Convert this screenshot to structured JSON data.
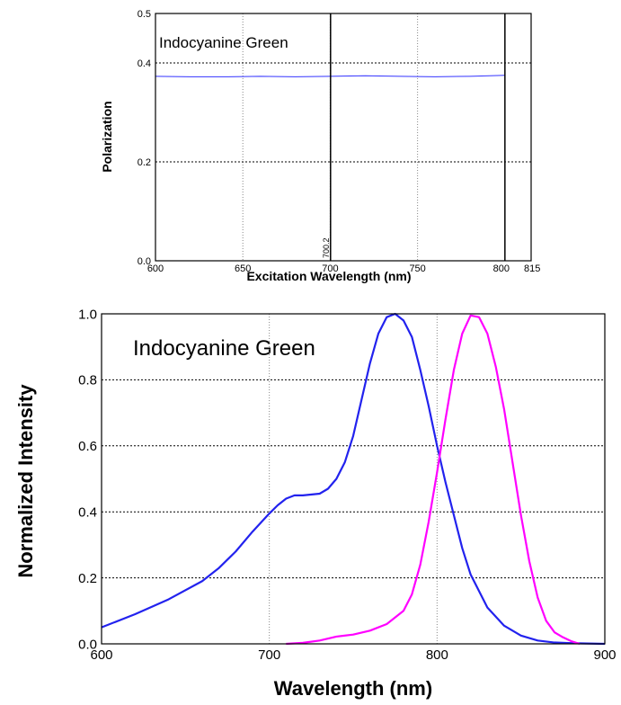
{
  "chart_data": [
    {
      "type": "line",
      "title": "Indocyanine Green",
      "xlabel": "Excitation Wavelength (nm)",
      "ylabel": "Polarization",
      "xlim": [
        600,
        815
      ],
      "ylim": [
        0,
        0.5
      ],
      "x_ticks": [
        "600",
        "650",
        "700",
        "750",
        "800",
        "815"
      ],
      "y_ticks": [
        "0.0",
        "0.2",
        "0.4",
        "0.5"
      ],
      "grid": true,
      "marker_line": {
        "x": 700.2,
        "label": "700.2"
      },
      "end_line": {
        "x": 800
      },
      "series": [
        {
          "color": "#3333ff",
          "x": [
            600,
            620,
            640,
            660,
            680,
            700,
            720,
            740,
            760,
            780,
            800
          ],
          "y": [
            0.373,
            0.372,
            0.372,
            0.373,
            0.372,
            0.373,
            0.374,
            0.373,
            0.372,
            0.373,
            0.375
          ]
        }
      ]
    },
    {
      "type": "line",
      "title": "Indocyanine Green",
      "xlabel": "Wavelength (nm)",
      "ylabel": "Normalized Intensity",
      "xlim": [
        600,
        900
      ],
      "ylim": [
        0,
        1
      ],
      "x_ticks": [
        "600",
        "700",
        "800",
        "900"
      ],
      "y_ticks": [
        "0.0",
        "0.2",
        "0.4",
        "0.6",
        "0.8",
        "1.0"
      ],
      "grid": true,
      "series": [
        {
          "color": "#2222ee",
          "x": [
            600,
            620,
            640,
            660,
            670,
            680,
            690,
            700,
            705,
            710,
            715,
            720,
            730,
            735,
            740,
            745,
            750,
            755,
            760,
            765,
            770,
            775,
            780,
            785,
            790,
            795,
            800,
            805,
            810,
            815,
            820,
            830,
            840,
            850,
            860,
            870,
            880,
            890,
            900
          ],
          "y": [
            0.05,
            0.09,
            0.135,
            0.19,
            0.23,
            0.28,
            0.34,
            0.395,
            0.42,
            0.44,
            0.45,
            0.45,
            0.455,
            0.47,
            0.5,
            0.55,
            0.63,
            0.74,
            0.85,
            0.94,
            0.99,
            1.0,
            0.98,
            0.93,
            0.83,
            0.72,
            0.6,
            0.49,
            0.39,
            0.29,
            0.21,
            0.11,
            0.055,
            0.025,
            0.01,
            0.004,
            0.002,
            0.001,
            0.0
          ]
        },
        {
          "color": "#ff00ff",
          "x": [
            710,
            720,
            730,
            740,
            750,
            760,
            770,
            780,
            785,
            790,
            795,
            800,
            805,
            810,
            815,
            820,
            825,
            830,
            835,
            840,
            845,
            850,
            855,
            860,
            865,
            870,
            875,
            880,
            885
          ],
          "y": [
            0.0,
            0.003,
            0.01,
            0.022,
            0.028,
            0.04,
            0.06,
            0.1,
            0.15,
            0.24,
            0.37,
            0.52,
            0.68,
            0.83,
            0.94,
            0.995,
            0.99,
            0.94,
            0.84,
            0.71,
            0.55,
            0.39,
            0.25,
            0.14,
            0.07,
            0.035,
            0.02,
            0.008,
            0.0
          ]
        }
      ]
    }
  ]
}
